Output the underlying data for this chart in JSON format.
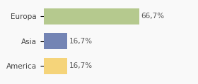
{
  "categories": [
    "Europa",
    "Asia",
    "America"
  ],
  "values": [
    66.7,
    16.7,
    16.7
  ],
  "bar_colors": [
    "#b5c98e",
    "#7384b4",
    "#f5d47a"
  ],
  "labels": [
    "66,7%",
    "16,7%",
    "16,7%"
  ],
  "background_color": "#f9f9f9",
  "xlim": [
    0,
    105
  ],
  "bar_height": 0.65,
  "label_fontsize": 7.5,
  "tick_fontsize": 7.5
}
